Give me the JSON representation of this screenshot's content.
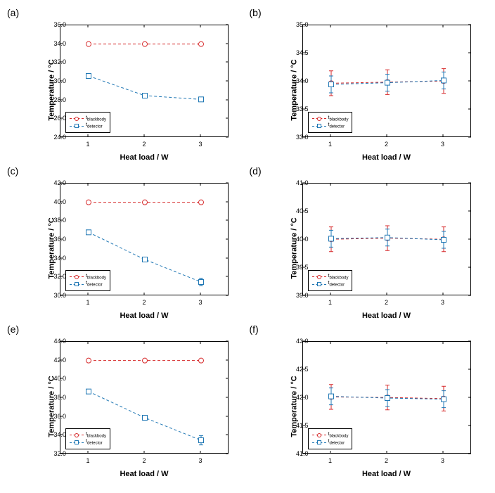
{
  "colors": {
    "blackbody": "#d62728",
    "detector": "#1f77b4",
    "border": "#000000",
    "bg": "#ffffff"
  },
  "xlabel": "Heat load / W",
  "ylabel": "Temperature / °C",
  "x_categories": [
    1,
    2,
    3
  ],
  "legend_labels": {
    "blackbody": "t_blackbody",
    "detector": "t_detector"
  },
  "panels": {
    "a": {
      "label": "(a)",
      "ylim": [
        24.0,
        36.0
      ],
      "ystep": 2.0,
      "legend_pos": "bottom-left",
      "blackbody": [
        34.0,
        34.0,
        34.0
      ],
      "blackbody_err": [
        0,
        0,
        0
      ],
      "detector": [
        30.6,
        28.5,
        28.1
      ],
      "detector_err": [
        0.2,
        0.2,
        0.2
      ]
    },
    "b": {
      "label": "(b)",
      "ylim": [
        33.0,
        35.0
      ],
      "ystep": 0.5,
      "legend_pos": "bottom-left",
      "blackbody": [
        33.97,
        33.99,
        34.01
      ],
      "blackbody_err": [
        0.22,
        0.22,
        0.22
      ],
      "detector": [
        33.95,
        33.98,
        34.02
      ],
      "detector_err": [
        0.15,
        0.15,
        0.15
      ]
    },
    "c": {
      "label": "(c)",
      "ylim": [
        30.0,
        42.0
      ],
      "ystep": 2.0,
      "legend_pos": "bottom-left",
      "blackbody": [
        40.0,
        40.0,
        40.0
      ],
      "blackbody_err": [
        0,
        0,
        0
      ],
      "detector": [
        36.8,
        33.9,
        31.5
      ],
      "detector_err": [
        0.2,
        0.2,
        0.4
      ]
    },
    "d": {
      "label": "(d)",
      "ylim": [
        39.0,
        41.0
      ],
      "ystep": 0.5,
      "legend_pos": "bottom-left",
      "blackbody": [
        40.01,
        40.03,
        40.01
      ],
      "blackbody_err": [
        0.22,
        0.22,
        0.22
      ],
      "detector": [
        40.02,
        40.04,
        40.0
      ],
      "detector_err": [
        0.15,
        0.15,
        0.15
      ]
    },
    "e": {
      "label": "(e)",
      "ylim": [
        32.0,
        44.0
      ],
      "ystep": 2.0,
      "legend_pos": "bottom-left",
      "blackbody": [
        42.0,
        42.0,
        42.0
      ],
      "blackbody_err": [
        0,
        0,
        0
      ],
      "detector": [
        38.7,
        35.9,
        33.5
      ],
      "detector_err": [
        0.2,
        0.2,
        0.5
      ]
    },
    "f": {
      "label": "(f)",
      "ylim": [
        41.0,
        43.0
      ],
      "ystep": 0.5,
      "legend_pos": "bottom-left",
      "blackbody": [
        42.02,
        42.01,
        41.99
      ],
      "blackbody_err": [
        0.22,
        0.22,
        0.22
      ],
      "detector": [
        42.03,
        42.0,
        41.98
      ],
      "detector_err": [
        0.15,
        0.15,
        0.15
      ]
    }
  },
  "style": {
    "marker_size": 7,
    "line_width": 1,
    "dash": "4,3",
    "fontsize_label": 11,
    "fontsize_tick": 9
  }
}
